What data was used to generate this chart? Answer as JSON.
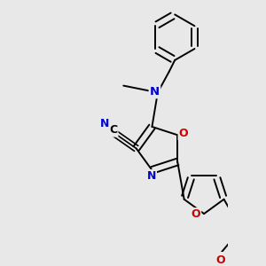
{
  "bg_color": "#e8e8e8",
  "bond_color": "#000000",
  "N_color": "#0000cc",
  "O_color": "#cc0000",
  "lw": 1.4,
  "figsize": [
    3.0,
    3.0
  ],
  "dpi": 100,
  "xlim": [
    -2.5,
    2.5
  ],
  "ylim": [
    -3.8,
    2.8
  ]
}
